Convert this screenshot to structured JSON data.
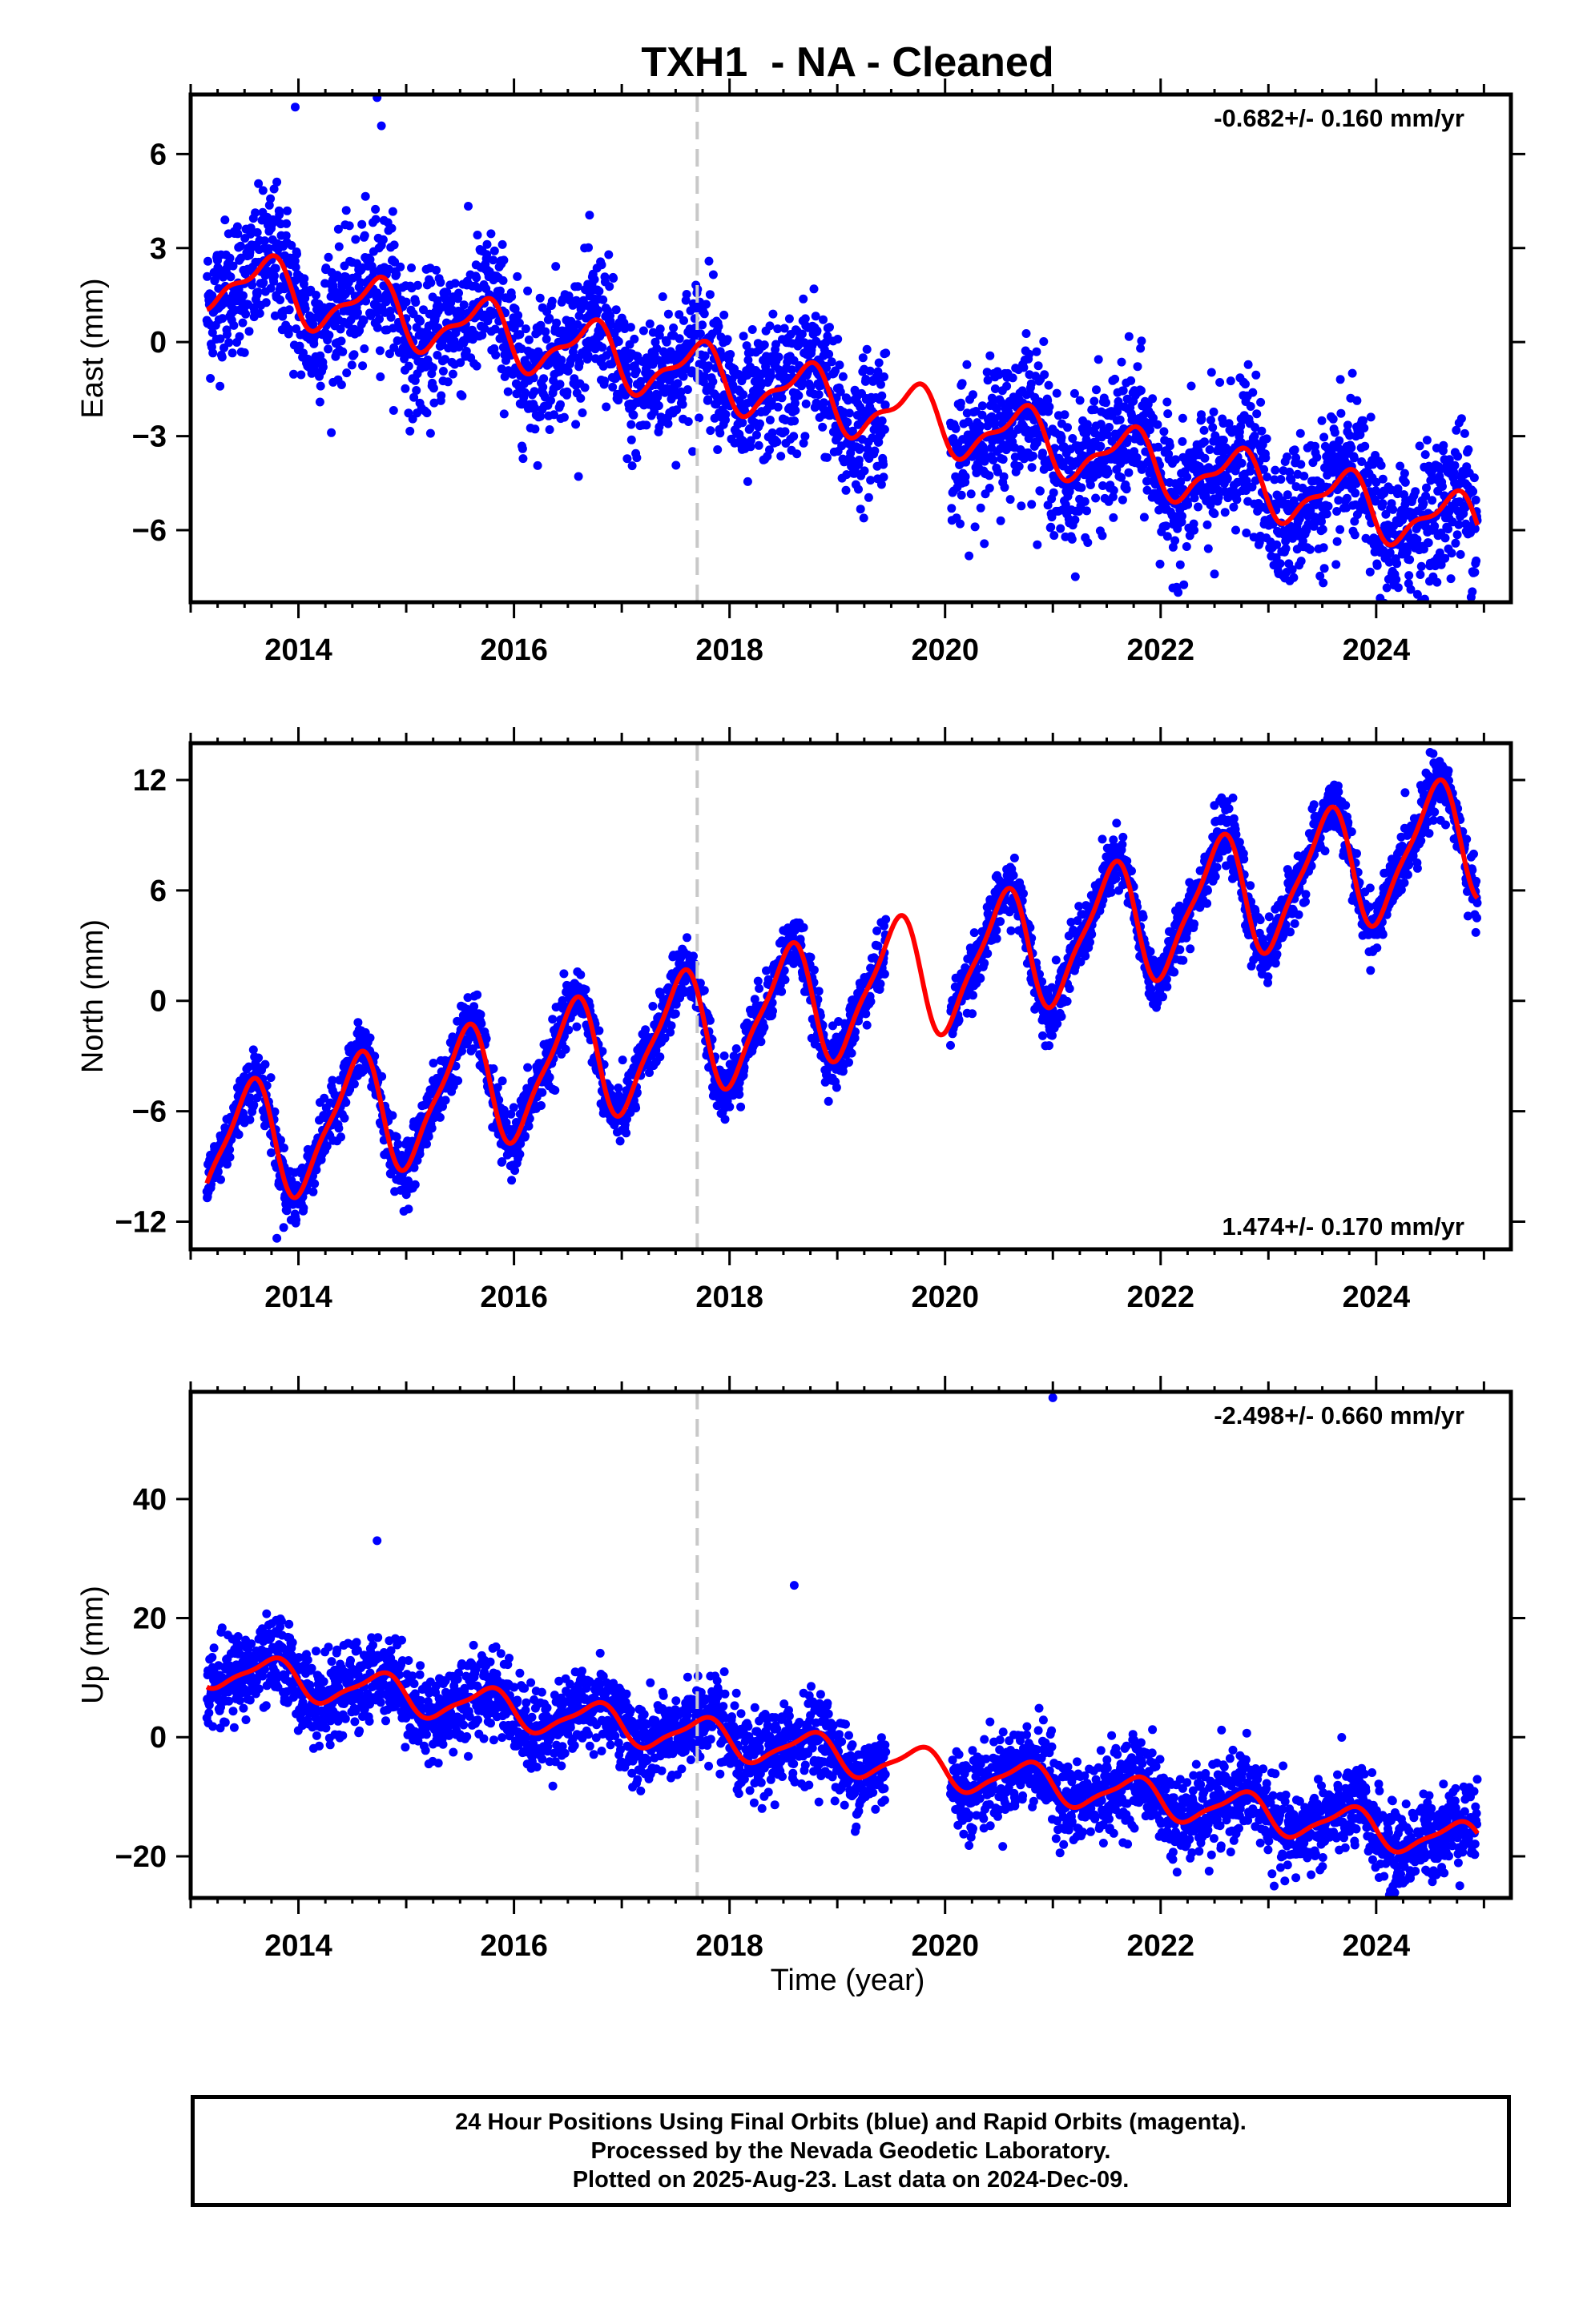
{
  "title": "TXH1  - NA - Cleaned",
  "x_axis": {
    "label": "Time (year)",
    "range": [
      2013.0,
      2025.25
    ],
    "tick_labels": [
      "2014",
      "2016",
      "2018",
      "2020",
      "2022",
      "2024"
    ]
  },
  "event_marker_year": 2017.7,
  "colors": {
    "final_orbits": "#0000ff",
    "model_fit": "#ff0000",
    "event_marker": "#c8c8c8",
    "frame": "#000000"
  },
  "footer": {
    "line1": "24 Hour Positions Using Final Orbits (blue) and Rapid Orbits (magenta).",
    "line2": "Processed by the Nevada Geodetic Laboratory.",
    "line3": "Plotted on 2025-Aug-23. Last data on 2024-Dec-09."
  },
  "chart_data": [
    {
      "type": "scatter",
      "component": "east",
      "ylabel": "East (mm)",
      "ylim": [
        -8.3,
        7.9
      ],
      "yticks": [
        -6,
        -3,
        0,
        3,
        6
      ],
      "ytick_labels": [
        "−6",
        "−3",
        "0",
        "3",
        "6"
      ],
      "rate_text": "-0.682+/- 0.160 mm/yr",
      "rate_position": "top-right",
      "model": {
        "offset": 2.2,
        "rate": -0.682,
        "annual_amp": 0.9,
        "annual_phase_year": 2013.7,
        "semiannual_amp": 0.35
      },
      "scatter_sd": 1.1,
      "data_gap": [
        2019.45,
        2020.05
      ],
      "outliers": [
        {
          "x": 2013.97,
          "y": 7.5
        },
        {
          "x": 2014.73,
          "y": 7.8
        },
        {
          "x": 2014.77,
          "y": 6.9
        },
        {
          "x": 2024.45,
          "y": -8.2
        },
        {
          "x": 2022.5,
          "y": -7.4
        }
      ]
    },
    {
      "type": "scatter",
      "component": "north",
      "ylabel": "North (mm)",
      "ylim": [
        -13.5,
        14.0
      ],
      "yticks": [
        -12,
        -6,
        0,
        6,
        12
      ],
      "ytick_labels": [
        "−12",
        "−6",
        "0",
        "6",
        "12"
      ],
      "rate_text": "1.474+/- 0.170 mm/yr",
      "rate_position": "bottom-right",
      "model": {
        "offset": -8.6,
        "rate": 1.474,
        "annual_amp": 3.2,
        "annual_phase_year": 2013.53,
        "semiannual_amp": 0.8
      },
      "scatter_sd": 0.8,
      "data_gap": [
        2019.45,
        2020.05
      ],
      "outliers": [
        {
          "x": 2024.5,
          "y": 13.5
        },
        {
          "x": 2013.8,
          "y": -12.9
        }
      ]
    },
    {
      "type": "scatter",
      "component": "up",
      "ylabel": "Up (mm)",
      "ylim": [
        -27.0,
        58.0
      ],
      "yticks": [
        -20,
        0,
        20,
        40
      ],
      "ytick_labels": [
        "−20",
        "0",
        "20",
        "40"
      ],
      "rate_text": "-2.498+/- 0.660 mm/yr",
      "rate_position": "top-right",
      "model": {
        "offset": 12.0,
        "rate": -2.498,
        "annual_amp": 3.0,
        "annual_phase_year": 2013.75,
        "semiannual_amp": 0.8
      },
      "scatter_sd": 3.5,
      "data_gap": [
        2019.45,
        2020.05
      ],
      "outliers": [
        {
          "x": 2021.0,
          "y": 57.0
        },
        {
          "x": 2014.73,
          "y": 33.0
        },
        {
          "x": 2018.6,
          "y": 25.5
        },
        {
          "x": 2022.45,
          "y": -22.5
        },
        {
          "x": 2024.25,
          "y": -24.5
        }
      ]
    }
  ]
}
